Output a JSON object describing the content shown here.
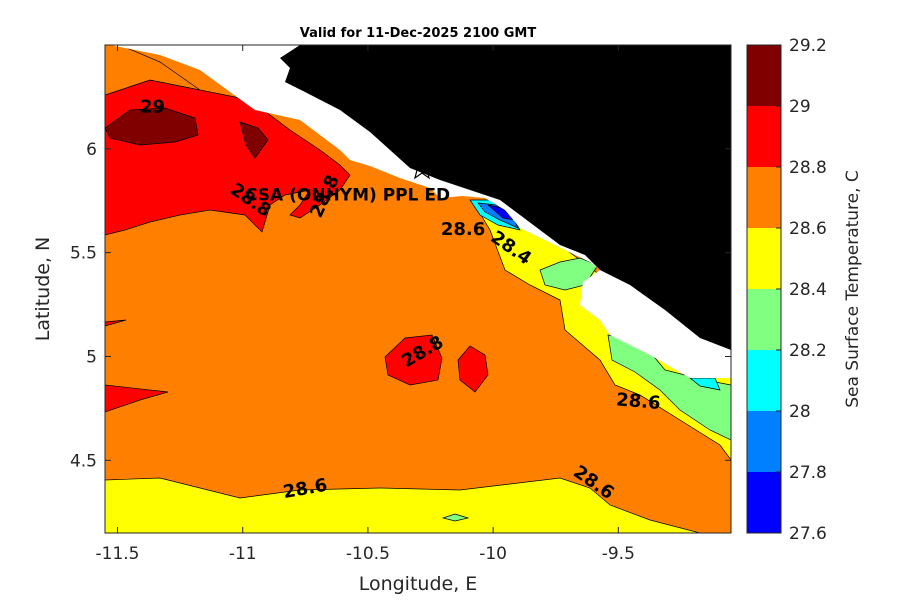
{
  "chart_data": {
    "type": "heatmap",
    "title": "Valid for 11-Dec-2025 2100 GMT",
    "xlabel": "Longitude, E",
    "ylabel": "Latitude, N",
    "xlim": [
      -11.55,
      -9.05
    ],
    "ylim": [
      4.15,
      6.5
    ],
    "xticks": [
      -11.5,
      -11,
      -10.5,
      -10,
      -9.5
    ],
    "xtick_labels": [
      "-11.5",
      "-11",
      "-10.5",
      "-10",
      "-9.5"
    ],
    "yticks": [
      4.5,
      5,
      5.5,
      6
    ],
    "ytick_labels": [
      "4.5",
      "5",
      "5.5",
      "6"
    ],
    "colorbar": {
      "label": "Sea Surface Temperature, C",
      "levels": [
        27.6,
        27.8,
        28.0,
        28.2,
        28.4,
        28.6,
        28.8,
        29.0,
        29.2
      ],
      "tick_labels": [
        "27.6",
        "27.8",
        "28",
        "28.2",
        "28.4",
        "28.6",
        "28.8",
        "29",
        "29.2"
      ],
      "colors": [
        "#0000ff",
        "#0080ff",
        "#00ffff",
        "#80ff80",
        "#ffff00",
        "#ff8000",
        "#ff0000",
        "#800000"
      ]
    },
    "contour_labels": [
      {
        "text": "29",
        "lon": -11.36,
        "lat": 6.2,
        "angle": 0
      },
      {
        "text": "28.8",
        "lon": -10.97,
        "lat": 5.75,
        "angle": 35
      },
      {
        "text": "28.8",
        "lon": -10.67,
        "lat": 5.77,
        "angle": -65
      },
      {
        "text": "28.6",
        "lon": -10.12,
        "lat": 5.61,
        "angle": 0
      },
      {
        "text": "28.4",
        "lon": -9.93,
        "lat": 5.52,
        "angle": 35
      },
      {
        "text": "28.8",
        "lon": -10.28,
        "lat": 5.02,
        "angle": -30
      },
      {
        "text": "28.6",
        "lon": -9.42,
        "lat": 4.78,
        "angle": 5
      },
      {
        "text": "28.6",
        "lon": -10.75,
        "lat": 4.36,
        "angle": -10
      },
      {
        "text": "28.6",
        "lon": -9.6,
        "lat": 4.39,
        "angle": 35
      }
    ],
    "station": {
      "name": "CSA (ONHYM) PPL ED",
      "lon": -10.28,
      "lat": 5.9
    },
    "grid": false
  },
  "colors": {
    "land": "#000000",
    "nodata": "#ffffff",
    "axis": "#262626"
  }
}
